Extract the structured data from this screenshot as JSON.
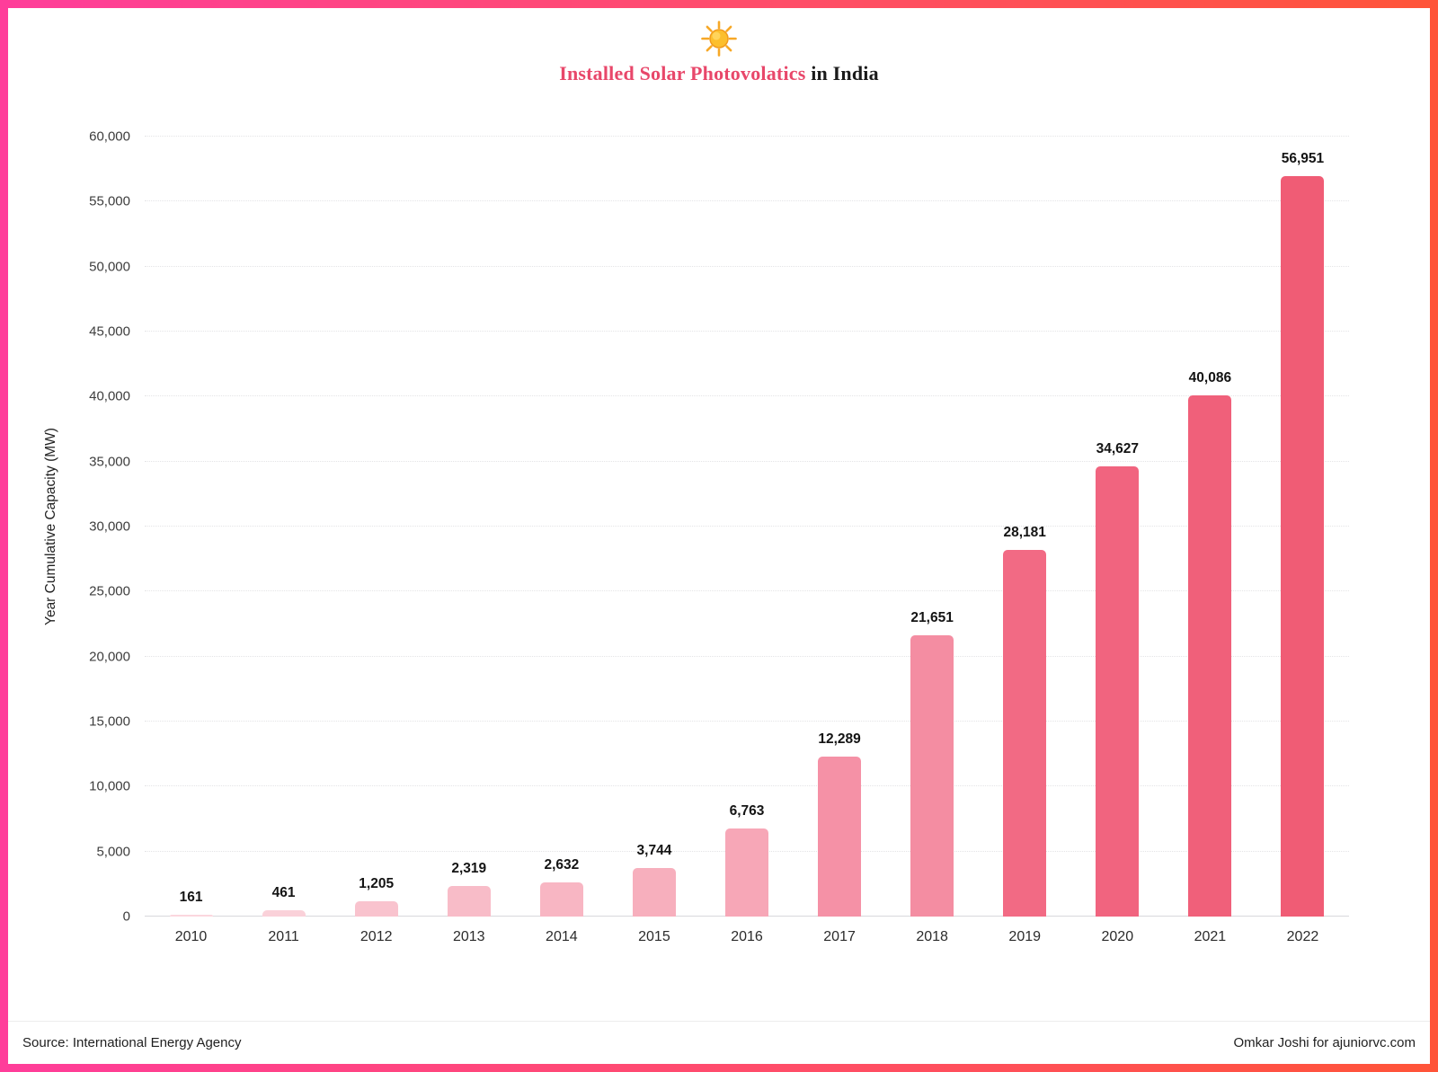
{
  "header": {
    "title_accent": "Installed Solar Photovolatics",
    "title_rest": " in India",
    "accent_color": "#e8476a"
  },
  "chart_data": {
    "type": "bar",
    "title": "Installed Solar Photovolatics in India",
    "xlabel": "",
    "ylabel": "Year Cumulative Capacity (MW)",
    "categories": [
      "2010",
      "2011",
      "2012",
      "2013",
      "2014",
      "2015",
      "2016",
      "2017",
      "2018",
      "2019",
      "2020",
      "2021",
      "2022"
    ],
    "values": [
      161,
      461,
      1205,
      2319,
      2632,
      3744,
      6763,
      12289,
      21651,
      28181,
      34627,
      40086,
      56951
    ],
    "value_labels": [
      "161",
      "461",
      "1,205",
      "2,319",
      "2,632",
      "3,744",
      "6,763",
      "12,289",
      "21,651",
      "28,181",
      "34,627",
      "40,086",
      "56,951"
    ],
    "bar_colors": [
      "#fbd7de",
      "#fad1d9",
      "#f9c3ce",
      "#f8bcc8",
      "#f8b6c3",
      "#f7afbd",
      "#f7a7b7",
      "#f591a6",
      "#f48da2",
      "#f26a84",
      "#f1647f",
      "#f0607a",
      "#f05c75"
    ],
    "ylim": [
      0,
      60000
    ],
    "yticks": [
      0,
      5000,
      10000,
      15000,
      20000,
      25000,
      30000,
      35000,
      40000,
      45000,
      50000,
      55000,
      60000
    ],
    "ytick_labels": [
      "0",
      "5,000",
      "10,000",
      "15,000",
      "20,000",
      "25,000",
      "30,000",
      "35,000",
      "40,000",
      "45,000",
      "50,000",
      "55,000",
      "60,000"
    ],
    "grid": "horizontal-dotted",
    "legend": "none"
  },
  "footer": {
    "source": "Source: International Energy Agency",
    "credit": "Omkar Joshi for ajuniorvc.com"
  },
  "frame": {
    "gradient_left": "#ff3d9a",
    "gradient_right": "#ff5438"
  }
}
